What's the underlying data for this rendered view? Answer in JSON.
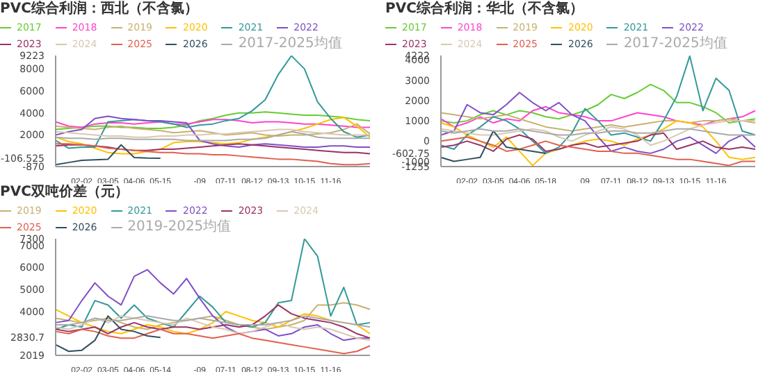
{
  "chart_data": [
    {
      "type": "line",
      "title": "PVC综合利润：西北（不含氯）",
      "legend": "top",
      "marker": "none",
      "line_style": "solid",
      "grid": false,
      "categories": [
        null,
        null,
        "02-02",
        null,
        "03-05",
        null,
        "04-06",
        null,
        "05-15",
        null,
        null,
        "-09",
        null,
        "07-11",
        null,
        "08-12",
        null,
        "09-13",
        null,
        "10-15",
        null,
        "11-16",
        null,
        null,
        null
      ],
      "ylim": [
        -870,
        9223
      ],
      "yticks": [
        -870,
        -106.525,
        2000,
        4000,
        6000,
        8000,
        9223
      ],
      "series": [
        {
          "name": "2017",
          "color": "#66cc33",
          "values": [
            2500,
            2600,
            2700,
            2800,
            2800,
            2700,
            2700,
            2600,
            2600,
            2700,
            2900,
            3300,
            3500,
            3800,
            4000,
            4000,
            4100,
            4000,
            3900,
            3800,
            3800,
            3700,
            3600,
            3400,
            3300
          ]
        },
        {
          "name": "2018",
          "color": "#ff44cc",
          "values": [
            3200,
            2800,
            2700,
            3000,
            3100,
            3100,
            3000,
            3100,
            3200,
            3000,
            3000,
            3200,
            3400,
            3400,
            3300,
            3100,
            3200,
            3200,
            3100,
            3000,
            3000,
            2900,
            2800,
            2700,
            2700
          ]
        },
        {
          "name": "2019",
          "color": "#c8b070",
          "values": [
            2800,
            2700,
            2600,
            2500,
            2700,
            2800,
            2600,
            2500,
            2400,
            2200,
            2300,
            2400,
            2200,
            2000,
            2100,
            2200,
            2000,
            1900,
            2000,
            2000,
            2100,
            2200,
            2500,
            3000,
            2100
          ]
        },
        {
          "name": "2020",
          "color": "#ffc000",
          "values": [
            1800,
            1400,
            1200,
            800,
            400,
            300,
            300,
            500,
            700,
            1300,
            1400,
            1400,
            1300,
            1200,
            1300,
            1600,
            1800,
            2000,
            2300,
            2600,
            3000,
            3400,
            3600,
            2800,
            1800
          ]
        },
        {
          "name": "2021",
          "color": "#339999",
          "values": [
            1500,
            800,
            900,
            900,
            3200,
            3300,
            3400,
            3300,
            3200,
            3000,
            2700,
            2900,
            3000,
            3300,
            3500,
            4200,
            5200,
            7500,
            9200,
            8000,
            5000,
            3500,
            2300,
            1800,
            2000
          ]
        },
        {
          "name": "2022",
          "color": "#7f4fc8",
          "values": [
            2000,
            2300,
            2500,
            3500,
            3700,
            3500,
            3400,
            3300,
            3300,
            3200,
            3100,
            1500,
            1200,
            1000,
            900,
            1100,
            1200,
            1100,
            1000,
            900,
            900,
            1000,
            1000,
            900,
            900
          ]
        },
        {
          "name": "2023",
          "color": "#993366",
          "values": [
            1000,
            1100,
            1100,
            1000,
            900,
            700,
            600,
            600,
            700,
            700,
            800,
            900,
            1000,
            1100,
            1200,
            1100,
            1000,
            900,
            800,
            700,
            600,
            500,
            400,
            400,
            300
          ]
        },
        {
          "name": "2024",
          "color": "#d9c8b0",
          "values": [
            2300,
            2200,
            2100,
            2000,
            1900,
            1900,
            1800,
            1800,
            1900,
            1900,
            2000,
            2000,
            2100,
            2100,
            2200,
            2300,
            2400,
            2500,
            2500,
            2300,
            2200,
            2100,
            2000,
            2000,
            2000
          ]
        },
        {
          "name": "2025",
          "color": "#e0604f",
          "values": [
            1200,
            1200,
            1100,
            1000,
            800,
            700,
            600,
            500,
            400,
            400,
            300,
            300,
            200,
            200,
            100,
            0,
            -100,
            -200,
            -200,
            -300,
            -400,
            -600,
            -700,
            -700,
            -600
          ]
        },
        {
          "name": "2026",
          "color": "#2f4f5f",
          "values": [
            -700,
            -500,
            -300,
            -250,
            -200,
            1100,
            -50,
            -100,
            -106.525,
            null,
            null,
            null,
            null,
            null,
            null,
            null,
            null,
            null,
            null,
            null,
            null,
            null,
            null,
            null,
            null
          ]
        },
        {
          "name": "2017-2025均值",
          "color": "#aaaaaa",
          "values": [
            1800,
            1700,
            1700,
            1600,
            1700,
            1700,
            1600,
            1600,
            1600,
            1600,
            1500,
            1500,
            1500,
            1500,
            1600,
            1600,
            1700,
            2000,
            2300,
            2100,
            1800,
            1700,
            1700,
            1700,
            1700
          ]
        }
      ]
    },
    {
      "type": "line",
      "title": "PVC综合利润：华北（不含氯）",
      "legend": "top",
      "marker": "none",
      "line_style": "solid",
      "grid": false,
      "categories": [
        null,
        null,
        "02-02",
        null,
        "03-05",
        null,
        "04-06",
        null,
        "05-18",
        null,
        null,
        "09",
        null,
        "07-11",
        null,
        "08-12",
        null,
        "09-13",
        null,
        "10-15",
        null,
        "11-16",
        null,
        null,
        null
      ],
      "ylim": [
        -1255,
        4222
      ],
      "yticks": [
        -1255,
        -1000,
        -602.75,
        0,
        1000,
        2000,
        3000,
        4000,
        4222
      ],
      "series": [
        {
          "name": "2017",
          "color": "#66cc33",
          "values": [
            1000,
            900,
            1000,
            1300,
            1500,
            1300,
            1500,
            1400,
            1200,
            1100,
            1300,
            1500,
            1800,
            2300,
            2100,
            2400,
            2800,
            2500,
            1900,
            1900,
            1700,
            1400,
            900,
            1000,
            1100
          ]
        },
        {
          "name": "2018",
          "color": "#ff44cc",
          "values": [
            1100,
            700,
            900,
            1200,
            900,
            1100,
            1000,
            1500,
            1700,
            1400,
            1300,
            1200,
            1000,
            1000,
            1200,
            1400,
            1300,
            1200,
            1000,
            900,
            800,
            1000,
            1100,
            1200,
            1500
          ]
        },
        {
          "name": "2019",
          "color": "#c8b070",
          "values": [
            1400,
            1300,
            1200,
            1100,
            1200,
            1300,
            1100,
            900,
            700,
            600,
            500,
            600,
            700,
            800,
            700,
            800,
            900,
            1000,
            1000,
            900,
            1000,
            1000,
            1100,
            1000,
            900
          ]
        },
        {
          "name": "2020",
          "color": "#ffc000",
          "values": [
            900,
            700,
            300,
            0,
            -300,
            200,
            -500,
            -1200,
            -600,
            -400,
            -200,
            0,
            100,
            0,
            -200,
            100,
            300,
            600,
            1000,
            900,
            700,
            0,
            -800,
            -900,
            -800
          ]
        },
        {
          "name": "2021",
          "color": "#339999",
          "values": [
            -200,
            -400,
            300,
            700,
            1200,
            1000,
            600,
            0,
            -600,
            -300,
            400,
            1600,
            1000,
            300,
            400,
            200,
            0,
            1000,
            2200,
            4200,
            1500,
            3100,
            2500,
            500,
            300
          ]
        },
        {
          "name": "2022",
          "color": "#7f4fc8",
          "values": [
            300,
            500,
            1800,
            1400,
            1300,
            1800,
            2400,
            1900,
            1500,
            1900,
            1300,
            1000,
            200,
            -500,
            -300,
            -500,
            -600,
            -400,
            0,
            200,
            -200,
            -600,
            0,
            300,
            -300
          ]
        },
        {
          "name": "2023",
          "color": "#993366",
          "values": [
            -300,
            -200,
            0,
            -200,
            -500,
            100,
            300,
            100,
            -500,
            -400,
            -200,
            -100,
            -300,
            -200,
            -100,
            0,
            300,
            400,
            -400,
            -200,
            0,
            -300,
            -400,
            -300,
            -400
          ]
        },
        {
          "name": "2024",
          "color": "#d9c8b0",
          "values": [
            600,
            500,
            400,
            300,
            300,
            400,
            500,
            600,
            500,
            200,
            0,
            300,
            500,
            700,
            600,
            300,
            -200,
            0,
            300,
            600,
            800,
            900,
            1000,
            1000,
            1000
          ]
        },
        {
          "name": "2025",
          "color": "#e0604f",
          "values": [
            0,
            100,
            200,
            0,
            -200,
            -500,
            -400,
            -200,
            0,
            -200,
            -300,
            -400,
            -500,
            -500,
            -600,
            -600,
            -700,
            -800,
            -900,
            -900,
            -1000,
            -1100,
            -1200,
            -1000,
            -1000
          ]
        },
        {
          "name": "2026",
          "color": "#2f4f5f",
          "values": [
            -800,
            -1000,
            -900,
            -800,
            500,
            -300,
            -400,
            -500,
            -602.75,
            null,
            null,
            null,
            null,
            null,
            null,
            null,
            null,
            null,
            null,
            null,
            null,
            null,
            null,
            null,
            null
          ]
        },
        {
          "name": "2017-2025均值",
          "color": "#aaaaaa",
          "values": [
            500,
            400,
            500,
            600,
            500,
            500,
            600,
            500,
            400,
            300,
            300,
            400,
            400,
            500,
            500,
            400,
            400,
            500,
            600,
            600,
            500,
            400,
            300,
            300,
            300
          ]
        }
      ]
    },
    {
      "type": "line",
      "title": "PVC双吨价差（元）",
      "legend": "top",
      "marker": "none",
      "line_style": "solid",
      "grid": false,
      "categories": [
        null,
        null,
        "02-02",
        null,
        "03-05",
        null,
        "04-06",
        null,
        "05-14",
        null,
        null,
        "-09",
        null,
        "07-11",
        null,
        "08-12",
        null,
        "09-13",
        null,
        "10-15",
        null,
        "11-16",
        null,
        null,
        null
      ],
      "ylim": [
        2019,
        7300
      ],
      "yticks": [
        2019,
        2830.7,
        4000,
        5000,
        6000,
        7000,
        7300
      ],
      "series": [
        {
          "name": "2019",
          "color": "#c8b070",
          "values": [
            3700,
            3600,
            3500,
            3600,
            3700,
            3500,
            3300,
            3200,
            3400,
            3500,
            3600,
            3700,
            3800,
            3600,
            3400,
            3300,
            3200,
            3300,
            3400,
            3600,
            4300,
            4300,
            4400,
            4300,
            4100
          ]
        },
        {
          "name": "2020",
          "color": "#ffc000",
          "values": [
            4100,
            3800,
            3500,
            3300,
            3100,
            3000,
            3200,
            3400,
            3300,
            3100,
            3000,
            3200,
            3500,
            4000,
            3800,
            3600,
            3500,
            3300,
            3600,
            3900,
            3800,
            3600,
            3500,
            3400,
            3000
          ]
        },
        {
          "name": "2021",
          "color": "#339999",
          "values": [
            3200,
            3400,
            3300,
            4500,
            4300,
            3700,
            4300,
            3700,
            3500,
            3300,
            4000,
            4700,
            4200,
            3500,
            3400,
            3300,
            3500,
            4400,
            4500,
            7300,
            6500,
            3800,
            5100,
            3400,
            3500
          ]
        },
        {
          "name": "2022",
          "color": "#7f4fc8",
          "values": [
            3500,
            3600,
            4500,
            5300,
            4700,
            4300,
            5600,
            5900,
            5300,
            4800,
            5500,
            4600,
            3800,
            3300,
            3000,
            3100,
            3200,
            2900,
            3000,
            3300,
            3400,
            3000,
            2700,
            2800,
            2800
          ]
        },
        {
          "name": "2023",
          "color": "#993366",
          "values": [
            3200,
            3100,
            3200,
            3300,
            3000,
            3300,
            3500,
            3300,
            3200,
            3300,
            3300,
            3200,
            3300,
            3400,
            3300,
            3400,
            3800,
            4300,
            3900,
            3700,
            3600,
            3500,
            3300,
            3000,
            2800
          ]
        },
        {
          "name": "2024",
          "color": "#d9c8b0",
          "values": [
            3300,
            3200,
            3400,
            3700,
            3500,
            3800,
            3700,
            3600,
            3500,
            3400,
            3700,
            3500,
            3300,
            3200,
            3000,
            3100,
            3300,
            3500,
            3300,
            3200,
            3300,
            3200,
            3000,
            2800,
            2700
          ]
        },
        {
          "name": "2025",
          "color": "#e0604f",
          "values": [
            3100,
            3000,
            3200,
            3100,
            2900,
            2800,
            2800,
            3000,
            3200,
            3000,
            3000,
            2900,
            2800,
            2900,
            3000,
            2800,
            2700,
            2600,
            2500,
            2400,
            2300,
            2200,
            2100,
            2200,
            2450
          ]
        },
        {
          "name": "2026",
          "color": "#2f4f5f",
          "values": [
            2500,
            2200,
            2250,
            2700,
            3800,
            3200,
            3100,
            2900,
            2830.7,
            null,
            null,
            null,
            null,
            null,
            null,
            null,
            null,
            null,
            null,
            null,
            null,
            null,
            null,
            null,
            null
          ]
        },
        {
          "name": "2019-2025均值",
          "color": "#aaaaaa",
          "values": [
            3400,
            3400,
            3500,
            3700,
            3600,
            3600,
            3700,
            3800,
            3700,
            3600,
            3600,
            3700,
            3600,
            3500,
            3400,
            3400,
            3400,
            3500,
            3600,
            3800,
            3700,
            3600,
            3500,
            3400,
            3300
          ]
        }
      ]
    }
  ]
}
